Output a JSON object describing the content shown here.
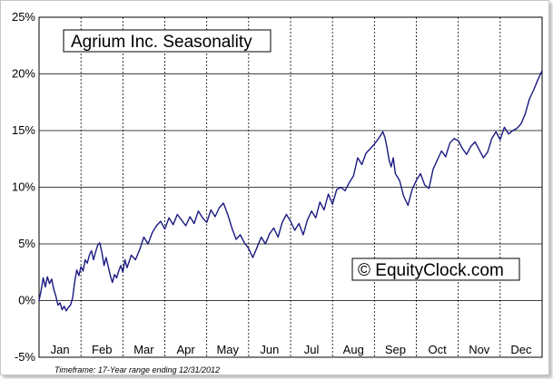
{
  "chart_data": {
    "type": "line",
    "title": "Agrium Inc. Seasonality",
    "watermark": "© EquityClock.com",
    "footnote": "Timeframe: 17-Year range ending 12/31/2012",
    "xlabel": "",
    "ylabel": "",
    "x_categories": [
      "Jan",
      "Feb",
      "Mar",
      "Apr",
      "May",
      "Jun",
      "Jul",
      "Aug",
      "Sep",
      "Oct",
      "Nov",
      "Dec"
    ],
    "y_ticks": [
      25,
      20,
      15,
      10,
      5,
      0,
      -5
    ],
    "y_tick_labels": [
      "25%",
      "20%",
      "15%",
      "10%",
      "5%",
      "0%",
      "-5%"
    ],
    "ylim": [
      -5,
      25
    ],
    "xlim": [
      0,
      12
    ],
    "grid": {
      "horizontal": "solid",
      "vertical": "dotted"
    },
    "line_color": "#1a1a80",
    "series": [
      {
        "x": [
          0,
          0.05,
          0.1,
          0.15,
          0.2,
          0.25,
          0.3,
          0.35,
          0.4,
          0.45,
          0.5,
          0.55,
          0.6,
          0.65,
          0.7,
          0.75,
          0.8,
          0.85,
          0.9,
          0.95,
          1.0,
          1.05,
          1.1,
          1.15,
          1.2,
          1.25,
          1.3,
          1.35,
          1.4,
          1.45,
          1.5,
          1.55,
          1.6,
          1.65,
          1.7,
          1.75,
          1.8,
          1.85,
          1.9,
          1.95,
          2.0,
          2.05,
          2.1,
          2.2,
          2.3,
          2.4,
          2.5,
          2.6,
          2.7,
          2.8,
          2.9,
          3.0,
          3.1,
          3.2,
          3.3,
          3.4,
          3.5,
          3.6,
          3.7,
          3.8,
          3.9,
          4.0,
          4.1,
          4.2,
          4.3,
          4.4,
          4.5,
          4.6,
          4.7,
          4.8,
          4.9,
          5.0,
          5.1,
          5.2,
          5.3,
          5.4,
          5.5,
          5.6,
          5.7,
          5.8,
          5.9,
          6.0,
          6.1,
          6.2,
          6.3,
          6.4,
          6.5,
          6.6,
          6.7,
          6.8,
          6.9,
          7.0,
          7.1,
          7.2,
          7.3,
          7.4,
          7.5,
          7.6,
          7.7,
          7.8,
          7.9,
          8.0,
          8.1,
          8.15,
          8.2,
          8.25,
          8.3,
          8.35,
          8.4,
          8.45,
          8.5,
          8.6,
          8.7,
          8.8,
          8.9,
          9.0,
          9.1,
          9.2,
          9.3,
          9.4,
          9.5,
          9.6,
          9.7,
          9.8,
          9.9,
          10.0,
          10.1,
          10.2,
          10.3,
          10.4,
          10.5,
          10.6,
          10.7,
          10.8,
          10.9,
          11.0,
          11.1,
          11.2,
          11.3,
          11.4,
          11.5,
          11.6,
          11.7,
          11.8,
          11.9,
          12.0
        ],
        "y": [
          0,
          0.9,
          2.0,
          1.2,
          2.1,
          1.5,
          1.9,
          1.0,
          0.4,
          -0.4,
          -0.2,
          -0.8,
          -0.5,
          -0.9,
          -0.6,
          -0.4,
          0.2,
          1.6,
          2.7,
          2.2,
          3.0,
          2.6,
          3.6,
          3.3,
          4.0,
          4.4,
          3.6,
          4.3,
          4.9,
          5.1,
          4.2,
          3.1,
          3.8,
          3.0,
          2.2,
          1.6,
          2.3,
          2.0,
          2.6,
          3.1,
          2.5,
          3.6,
          2.9,
          4.0,
          3.6,
          4.5,
          5.6,
          5.0,
          6.0,
          6.6,
          7.0,
          6.3,
          7.3,
          6.7,
          7.6,
          7.1,
          6.6,
          7.4,
          6.8,
          7.9,
          7.3,
          6.9,
          8.0,
          7.4,
          8.2,
          8.6,
          7.6,
          6.4,
          5.4,
          5.8,
          5.1,
          4.6,
          3.8,
          4.7,
          5.6,
          5.0,
          5.9,
          6.4,
          5.6,
          6.9,
          7.6,
          7.0,
          6.2,
          6.8,
          5.8,
          7.1,
          7.9,
          7.3,
          8.7,
          8.0,
          9.4,
          8.5,
          9.8,
          10.0,
          9.7,
          10.4,
          11.0,
          12.6,
          12.0,
          13.0,
          13.4,
          13.8,
          14.3,
          14.6,
          14.9,
          14.4,
          13.5,
          12.4,
          11.8,
          12.6,
          11.2,
          10.6,
          9.2,
          8.4,
          9.8,
          10.6,
          11.2,
          10.2,
          9.9,
          11.6,
          12.4,
          13.2,
          12.7,
          13.9,
          14.3,
          14.1,
          13.4,
          12.9,
          13.6,
          14.0,
          13.3,
          12.6,
          13.1,
          14.3,
          14.9,
          14.2,
          15.3,
          14.7,
          15.0,
          15.2,
          15.6,
          16.5,
          17.8,
          18.6,
          19.5,
          20.3
        ]
      }
    ]
  }
}
